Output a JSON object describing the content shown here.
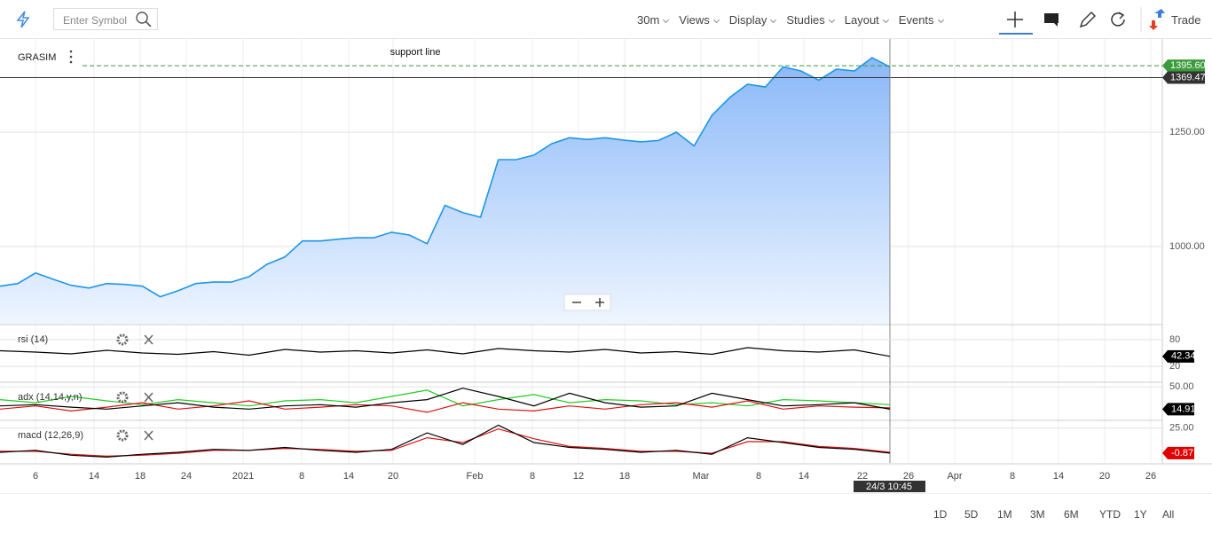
{
  "toolbar": {
    "search_placeholder": "Enter Symbol",
    "menus": [
      "30m",
      "Views",
      "Display",
      "Studies",
      "Layout",
      "Events"
    ],
    "trade": "Trade"
  },
  "chart_data": [
    {
      "type": "area",
      "symbol": "GRASIM",
      "annotation": "support line",
      "color": "#1e96e6",
      "x_labels": [
        "6",
        "14",
        "18",
        "24",
        "2021",
        "8",
        "14",
        "20",
        "Feb",
        "8",
        "12",
        "18",
        "Mar",
        "8",
        "14",
        "22",
        "26",
        "Apr",
        "8",
        "14",
        "20",
        "26"
      ],
      "crosshair_label": "24/3 10:45",
      "values": [
        913,
        919,
        942,
        928,
        915,
        909,
        919,
        917,
        913,
        890,
        903,
        919,
        922,
        922,
        934,
        961,
        977,
        1012,
        1012,
        1016,
        1019,
        1019,
        1031,
        1025,
        1006,
        1090,
        1074,
        1064,
        1190,
        1190,
        1200,
        1225,
        1238,
        1234,
        1238,
        1233,
        1229,
        1232,
        1250,
        1220,
        1287,
        1326,
        1355,
        1349,
        1393,
        1384,
        1364,
        1388,
        1384,
        1413,
        1393
      ],
      "ylim": [
        831,
        1452
      ],
      "yticks": [
        {
          "value": 1000,
          "label": "1000.00"
        },
        {
          "value": 1250,
          "label": "1250.00"
        }
      ],
      "levels": [
        {
          "value": 1395.6,
          "label": "1395.60",
          "color": "#3a9b3a"
        },
        {
          "value": 1369.47,
          "label": "1369.47",
          "color": "#333333"
        }
      ]
    },
    {
      "type": "line",
      "title": "rsi (14)",
      "label_color": "#000000",
      "series": [
        {
          "color": "#000000",
          "values": [
            55,
            52,
            48,
            56,
            50,
            47,
            53,
            45,
            58,
            52,
            55,
            50,
            57,
            48,
            60,
            55,
            52,
            58,
            50,
            53,
            47,
            62,
            55,
            52,
            57,
            42.34
          ]
        }
      ],
      "ylim": [
        16,
        112
      ],
      "yticks": [
        80,
        20
      ]
    },
    {
      "type": "line",
      "title": "adx (14,14,y,n)",
      "label_color": "#000000",
      "series": [
        {
          "color": "#22cc22",
          "values": [
            30,
            25,
            35,
            28,
            22,
            30,
            25,
            20,
            28,
            30,
            25,
            35,
            45,
            20,
            30,
            38,
            25,
            30,
            28,
            22,
            25,
            20,
            30,
            28,
            25,
            22
          ]
        },
        {
          "color": "#dd1111",
          "values": [
            15,
            20,
            12,
            18,
            25,
            15,
            20,
            28,
            15,
            18,
            22,
            20,
            10,
            25,
            15,
            12,
            20,
            15,
            22,
            25,
            18,
            28,
            15,
            20,
            18,
            17
          ]
        },
        {
          "color": "#000000",
          "values": [
            20,
            22,
            18,
            15,
            20,
            25,
            18,
            15,
            20,
            22,
            18,
            25,
            30,
            48,
            35,
            20,
            40,
            25,
            18,
            20,
            40,
            30,
            20,
            22,
            25,
            14.91
          ]
        }
      ],
      "ylim": [
        0,
        56
      ],
      "yticks": [
        {
          "value": 50,
          "label": "50.00"
        }
      ]
    },
    {
      "type": "line",
      "title": "macd (12,26,9)",
      "label_color": "#e00000",
      "series": [
        {
          "color": "#dd1111",
          "values": [
            1,
            1,
            -2,
            -4,
            -3,
            -1,
            2,
            2,
            4,
            3,
            1,
            2,
            15,
            10,
            24,
            14,
            6,
            4,
            1,
            1,
            -1,
            11,
            11,
            6,
            4,
            0
          ]
        },
        {
          "color": "#000000",
          "values": [
            0,
            2,
            -3,
            -5,
            -2,
            0,
            3,
            2,
            5,
            2,
            0,
            3,
            20,
            8,
            28,
            10,
            5,
            3,
            0,
            2,
            -2,
            15,
            10,
            5,
            3,
            -0.87
          ]
        }
      ],
      "ylim": [
        -11,
        32
      ],
      "yticks": [
        {
          "value": 25,
          "label": "25.00"
        }
      ]
    }
  ],
  "ranges": [
    "1D",
    "5D",
    "1M",
    "3M",
    "6M",
    "YTD",
    "1Y",
    "All"
  ]
}
